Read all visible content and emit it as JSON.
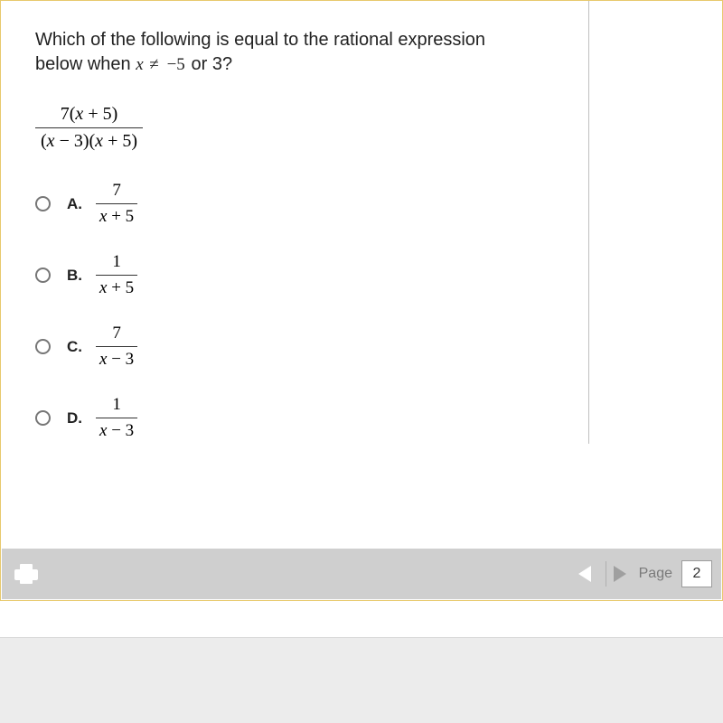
{
  "question": {
    "line1": "Which of the following is equal to the rational expression",
    "line2_prefix": "below when ",
    "condition_var": "x",
    "condition_neq": "≠",
    "condition_val1": "−5",
    "condition_mid": " or ",
    "condition_val2": "3?",
    "expr_numerator": "7(x + 5)",
    "expr_denominator": "(x − 3)(x + 5)"
  },
  "choices": [
    {
      "letter": "A.",
      "num": "7",
      "den": "x + 5"
    },
    {
      "letter": "B.",
      "num": "1",
      "den": "x + 5"
    },
    {
      "letter": "C.",
      "num": "7",
      "den": "x − 3"
    },
    {
      "letter": "D.",
      "num": "1",
      "den": "x − 3"
    }
  ],
  "footer": {
    "page_label": "Page",
    "page_number": "2"
  },
  "colors": {
    "frame_border": "#e8c96d",
    "divider": "#bfbfbf",
    "footer_bg": "#cfcfcf",
    "bottom_bg": "#ececec",
    "text": "#222222"
  }
}
